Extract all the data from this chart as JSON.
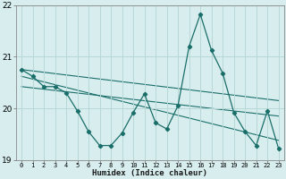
{
  "xlabel": "Humidex (Indice chaleur)",
  "ylabel": "",
  "bg_color": "#d8eeee",
  "grid_color": "#b8d8d8",
  "line_color": "#1a6e6a",
  "xlim": [
    -0.5,
    23.5
  ],
  "ylim": [
    19.0,
    22.0
  ],
  "yticks": [
    19,
    20,
    21,
    22
  ],
  "xticks": [
    0,
    1,
    2,
    3,
    4,
    5,
    6,
    7,
    8,
    9,
    10,
    11,
    12,
    13,
    14,
    15,
    16,
    17,
    18,
    19,
    20,
    21,
    22,
    23
  ],
  "series1_x": [
    0,
    1,
    2,
    3,
    4,
    5,
    6,
    7,
    8,
    9,
    10,
    11,
    12,
    13,
    14,
    15,
    16,
    17,
    18,
    19,
    20,
    21,
    22,
    23
  ],
  "series1_y": [
    20.75,
    20.62,
    20.42,
    20.42,
    20.3,
    19.95,
    19.55,
    19.28,
    19.28,
    19.52,
    19.92,
    20.28,
    19.72,
    19.6,
    20.05,
    21.2,
    21.82,
    21.12,
    20.68,
    19.92,
    19.55,
    19.28,
    19.95,
    19.22
  ],
  "trend1_x": [
    0,
    23
  ],
  "trend1_y": [
    20.75,
    20.15
  ],
  "trend2_x": [
    0,
    23
  ],
  "trend2_y": [
    20.62,
    19.38
  ],
  "trend3_x": [
    0,
    23
  ],
  "trend3_y": [
    20.42,
    19.85
  ]
}
